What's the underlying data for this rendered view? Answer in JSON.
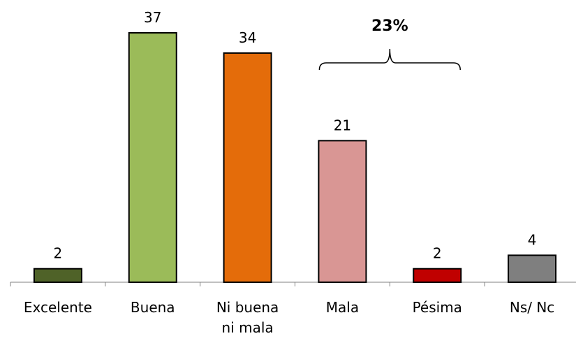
{
  "chart_data": {
    "type": "bar",
    "categories": [
      [
        "Excelente"
      ],
      [
        "Buena"
      ],
      [
        "Ni buena",
        "ni mala"
      ],
      [
        "Mala"
      ],
      [
        "Pésima"
      ],
      [
        "Ns/ Nc"
      ]
    ],
    "values": [
      2,
      37,
      34,
      21,
      2,
      4
    ],
    "colors": [
      "#4f6228",
      "#9bbb59",
      "#e46c0a",
      "#d99694",
      "#c00000",
      "#7f7f7f"
    ],
    "annotation": {
      "text": "23%",
      "spans_categories": [
        "Mala",
        "Pésima"
      ]
    },
    "title": "",
    "xlabel": "",
    "ylabel": "",
    "ylim": [
      0,
      37
    ],
    "grid": false,
    "legend": "none"
  }
}
